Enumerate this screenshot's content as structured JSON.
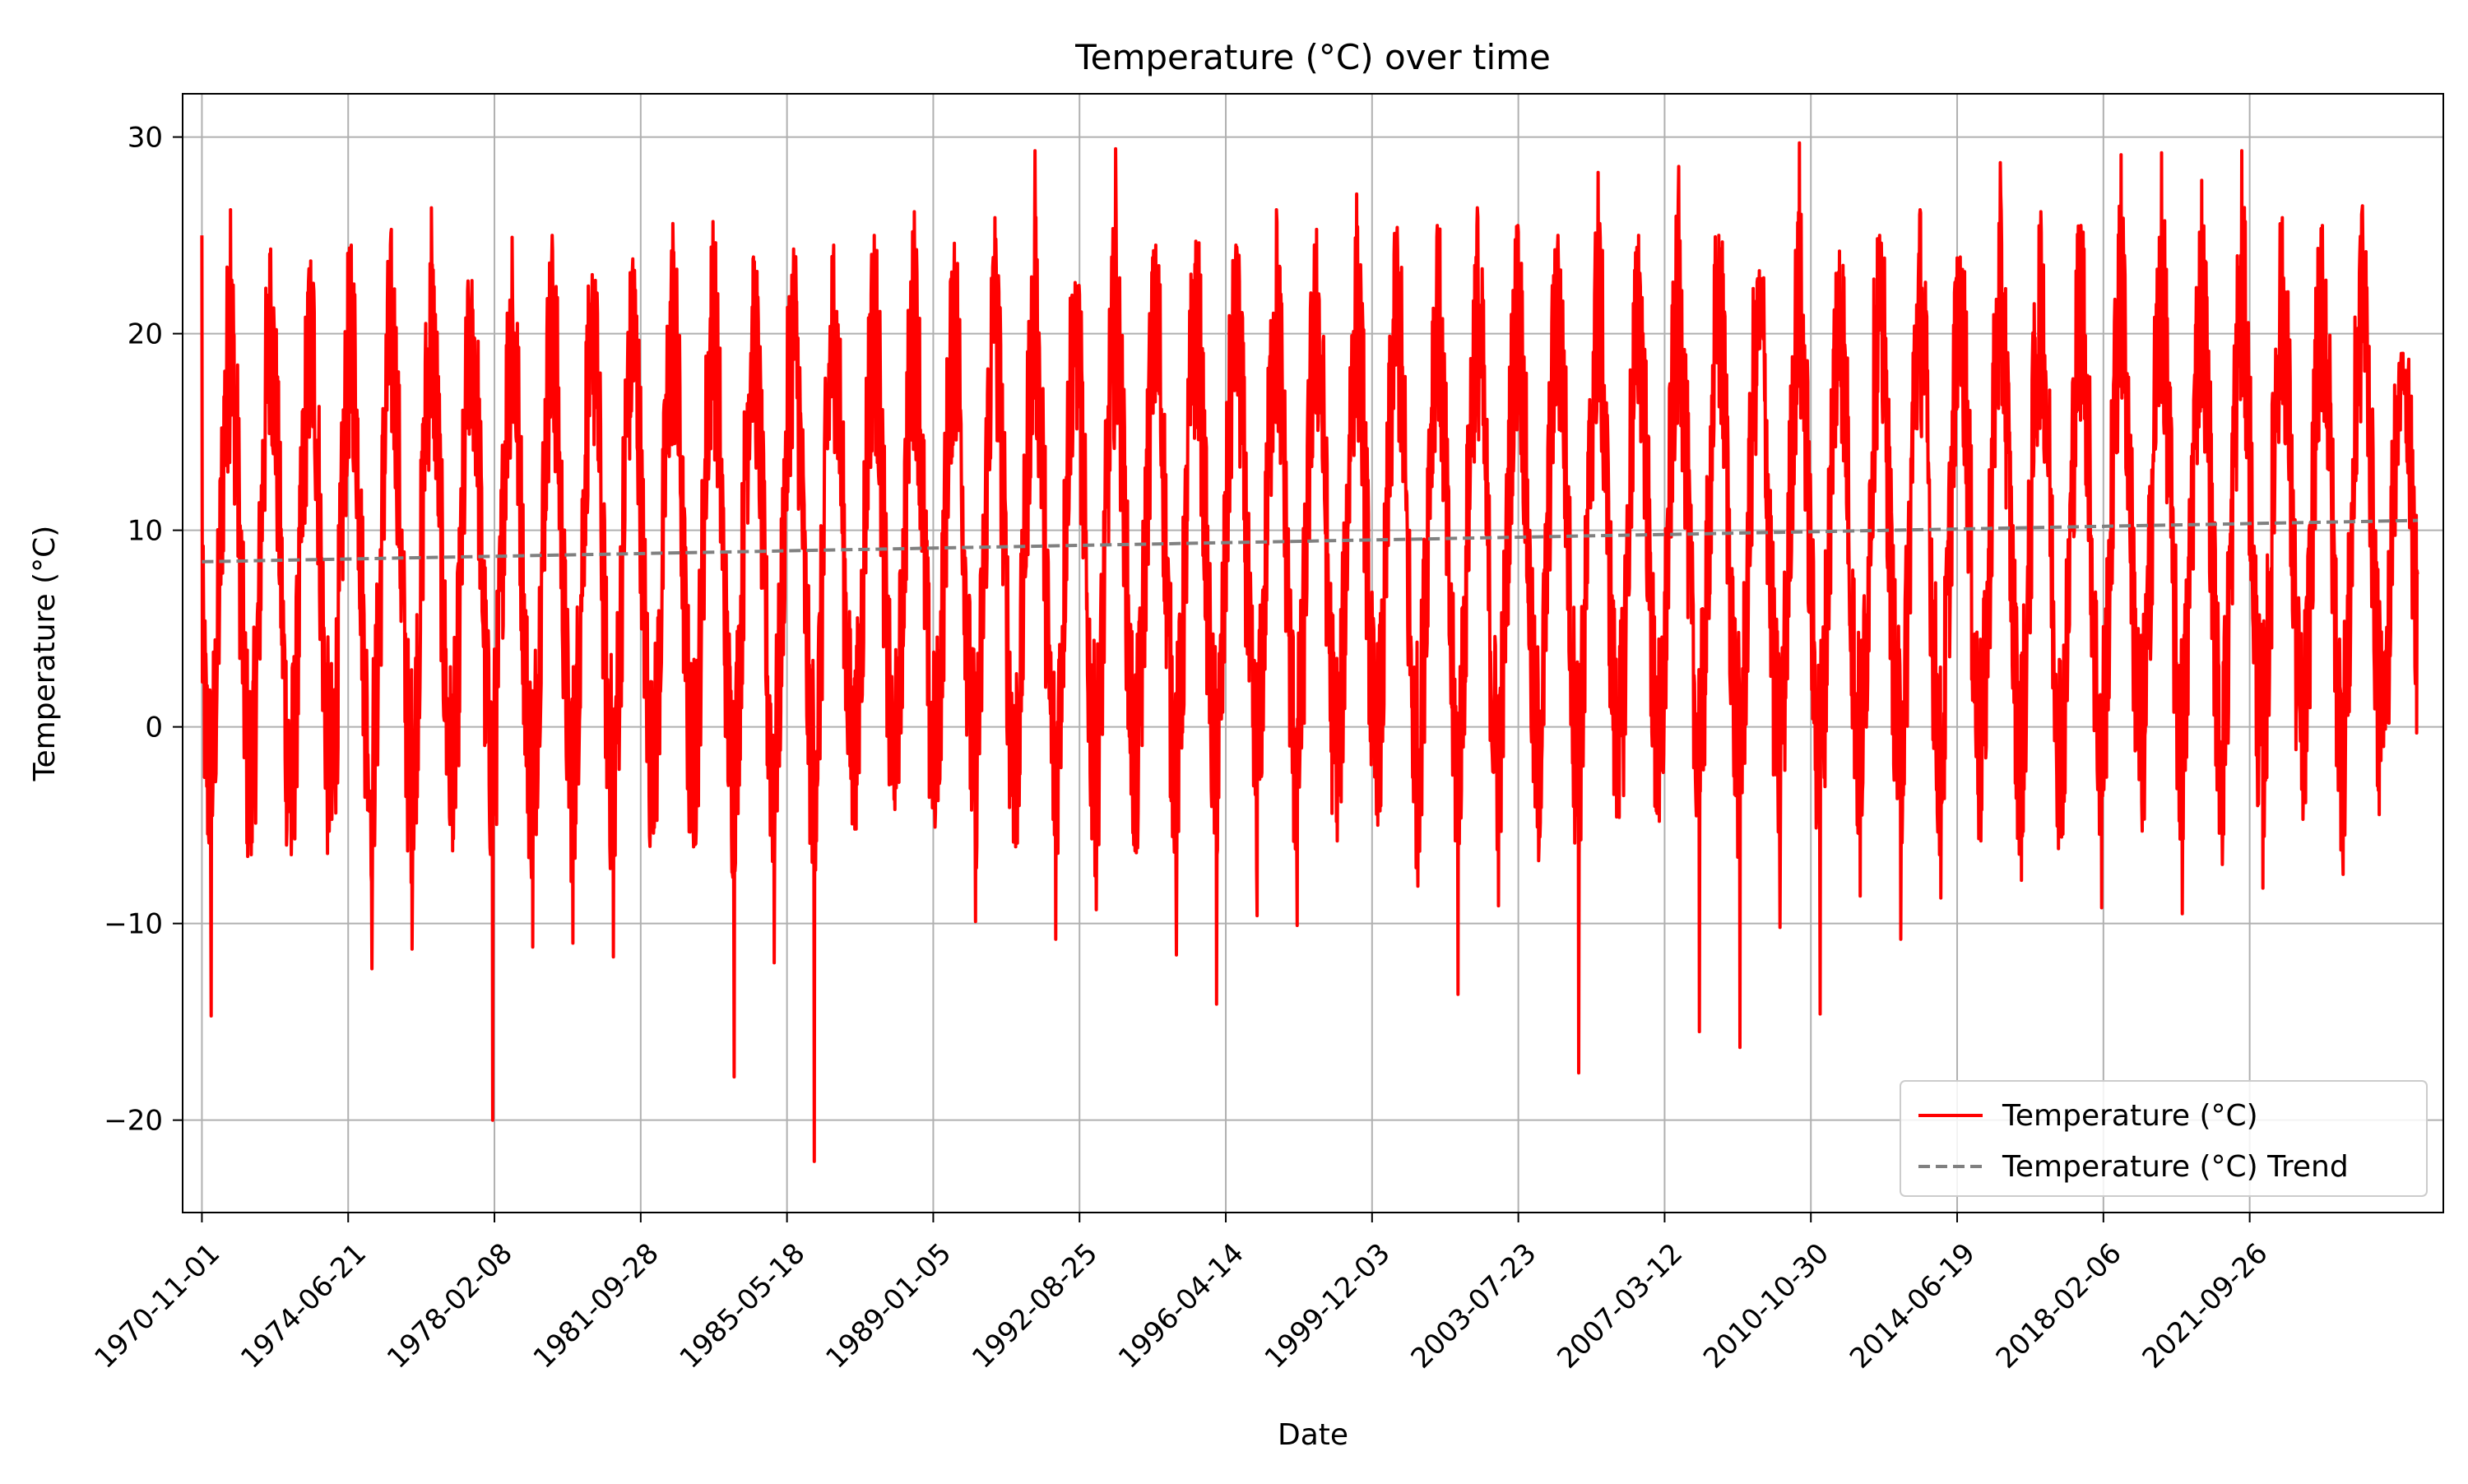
{
  "chart_data": {
    "type": "line",
    "title": "Temperature (°C) over time",
    "xlabel": "Date",
    "ylabel": "Temperature (°C)",
    "x_axis_type": "date",
    "xlim": [
      "1970-05-10",
      "2026-07-20"
    ],
    "ylim": [
      -24.7,
      32.2
    ],
    "grid": true,
    "legend_position": "lower right",
    "x_ticks": [
      "1970-11-01",
      "1974-06-21",
      "1978-02-08",
      "1981-09-28",
      "1985-05-18",
      "1989-01-05",
      "1992-08-25",
      "1996-04-14",
      "1999-12-03",
      "2003-07-23",
      "2007-03-12",
      "2010-10-30",
      "2014-06-19",
      "2018-02-06",
      "2021-09-26"
    ],
    "y_ticks": [
      -20,
      -10,
      0,
      10,
      20,
      30
    ],
    "series": [
      {
        "name": "Temperature (°C)",
        "color": "#ff0000",
        "style": "solid",
        "date_range": [
          "1970-11-01",
          "2025-11-30"
        ],
        "annual_maxima": [
          {
            "year": 1971,
            "value": 26.3
          },
          {
            "year": 1972,
            "value": 24.3
          },
          {
            "year": 1973,
            "value": 23.7
          },
          {
            "year": 1974,
            "value": 24.5
          },
          {
            "year": 1975,
            "value": 25.3
          },
          {
            "year": 1976,
            "value": 26.4
          },
          {
            "year": 1977,
            "value": 22.7
          },
          {
            "year": 1978,
            "value": 24.9
          },
          {
            "year": 1979,
            "value": 25.0
          },
          {
            "year": 1980,
            "value": 23.0
          },
          {
            "year": 1981,
            "value": 23.8
          },
          {
            "year": 1982,
            "value": 25.6
          },
          {
            "year": 1983,
            "value": 25.7
          },
          {
            "year": 1984,
            "value": 23.9
          },
          {
            "year": 1985,
            "value": 24.3
          },
          {
            "year": 1986,
            "value": 24.5
          },
          {
            "year": 1987,
            "value": 25.0
          },
          {
            "year": 1988,
            "value": 26.2
          },
          {
            "year": 1989,
            "value": 24.6
          },
          {
            "year": 1990,
            "value": 25.9
          },
          {
            "year": 1991,
            "value": 29.3
          },
          {
            "year": 1992,
            "value": 22.6
          },
          {
            "year": 1993,
            "value": 29.4
          },
          {
            "year": 1994,
            "value": 24.5
          },
          {
            "year": 1995,
            "value": 24.7
          },
          {
            "year": 1996,
            "value": 24.5
          },
          {
            "year": 1997,
            "value": 26.3
          },
          {
            "year": 1998,
            "value": 25.3
          },
          {
            "year": 1999,
            "value": 27.1
          },
          {
            "year": 2000,
            "value": 25.4
          },
          {
            "year": 2001,
            "value": 25.5
          },
          {
            "year": 2002,
            "value": 26.4
          },
          {
            "year": 2003,
            "value": 25.5
          },
          {
            "year": 2004,
            "value": 25.0
          },
          {
            "year": 2005,
            "value": 28.2
          },
          {
            "year": 2006,
            "value": 25.0
          },
          {
            "year": 2007,
            "value": 28.5
          },
          {
            "year": 2008,
            "value": 25.0
          },
          {
            "year": 2009,
            "value": 23.2
          },
          {
            "year": 2010,
            "value": 29.7
          },
          {
            "year": 2011,
            "value": 24.2
          },
          {
            "year": 2012,
            "value": 25.0
          },
          {
            "year": 2013,
            "value": 26.3
          },
          {
            "year": 2014,
            "value": 23.9
          },
          {
            "year": 2015,
            "value": 28.7
          },
          {
            "year": 2016,
            "value": 26.2
          },
          {
            "year": 2017,
            "value": 25.5
          },
          {
            "year": 2018,
            "value": 29.1
          },
          {
            "year": 2019,
            "value": 29.2
          },
          {
            "year": 2020,
            "value": 27.8
          },
          {
            "year": 2021,
            "value": 29.3
          },
          {
            "year": 2022,
            "value": 25.9
          },
          {
            "year": 2023,
            "value": 25.5
          },
          {
            "year": 2024,
            "value": 26.5
          },
          {
            "year": 2025,
            "value": 19.0
          }
        ],
        "annual_minima": [
          {
            "year": 1971,
            "value": -14.7
          },
          {
            "year": 1972,
            "value": -6.5
          },
          {
            "year": 1973,
            "value": -6.5
          },
          {
            "year": 1974,
            "value": -4.7
          },
          {
            "year": 1975,
            "value": -12.3
          },
          {
            "year": 1976,
            "value": -11.3
          },
          {
            "year": 1977,
            "value": -6.3
          },
          {
            "year": 1978,
            "value": -20.0
          },
          {
            "year": 1979,
            "value": -11.2
          },
          {
            "year": 1980,
            "value": -11.0
          },
          {
            "year": 1981,
            "value": -11.7
          },
          {
            "year": 1982,
            "value": -5.4
          },
          {
            "year": 1983,
            "value": -6.1
          },
          {
            "year": 1984,
            "value": -17.8
          },
          {
            "year": 1985,
            "value": -12.0
          },
          {
            "year": 1986,
            "value": -22.1
          },
          {
            "year": 1987,
            "value": -5.2
          },
          {
            "year": 1988,
            "value": -4.2
          },
          {
            "year": 1989,
            "value": -5.1
          },
          {
            "year": 1990,
            "value": -9.9
          },
          {
            "year": 1991,
            "value": -6.1
          },
          {
            "year": 1992,
            "value": -10.8
          },
          {
            "year": 1993,
            "value": -9.3
          },
          {
            "year": 1994,
            "value": -6.4
          },
          {
            "year": 1995,
            "value": -11.6
          },
          {
            "year": 1996,
            "value": -14.1
          },
          {
            "year": 1997,
            "value": -9.6
          },
          {
            "year": 1998,
            "value": -10.1
          },
          {
            "year": 1999,
            "value": -5.8
          },
          {
            "year": 2000,
            "value": -5.0
          },
          {
            "year": 2001,
            "value": -8.1
          },
          {
            "year": 2002,
            "value": -13.6
          },
          {
            "year": 2003,
            "value": -9.1
          },
          {
            "year": 2004,
            "value": -6.8
          },
          {
            "year": 2005,
            "value": -17.6
          },
          {
            "year": 2006,
            "value": -4.6
          },
          {
            "year": 2007,
            "value": -4.8
          },
          {
            "year": 2008,
            "value": -15.5
          },
          {
            "year": 2009,
            "value": -16.3
          },
          {
            "year": 2010,
            "value": -10.2
          },
          {
            "year": 2011,
            "value": -14.6
          },
          {
            "year": 2012,
            "value": -8.6
          },
          {
            "year": 2013,
            "value": -10.8
          },
          {
            "year": 2014,
            "value": -8.7
          },
          {
            "year": 2015,
            "value": -5.8
          },
          {
            "year": 2016,
            "value": -7.8
          },
          {
            "year": 2017,
            "value": -5.6
          },
          {
            "year": 2018,
            "value": -9.2
          },
          {
            "year": 2019,
            "value": -5.3
          },
          {
            "year": 2020,
            "value": -9.5
          },
          {
            "year": 2021,
            "value": -7.0
          },
          {
            "year": 2022,
            "value": -8.2
          },
          {
            "year": 2023,
            "value": -4.7
          },
          {
            "year": 2024,
            "value": -7.5
          },
          {
            "year": 2025,
            "value": -1.0
          }
        ]
      },
      {
        "name": "Temperature (°C) Trend",
        "color": "#808080",
        "style": "dashed",
        "x": [
          "1970-11-01",
          "2025-11-30"
        ],
        "y": [
          8.4,
          10.5
        ]
      }
    ]
  }
}
